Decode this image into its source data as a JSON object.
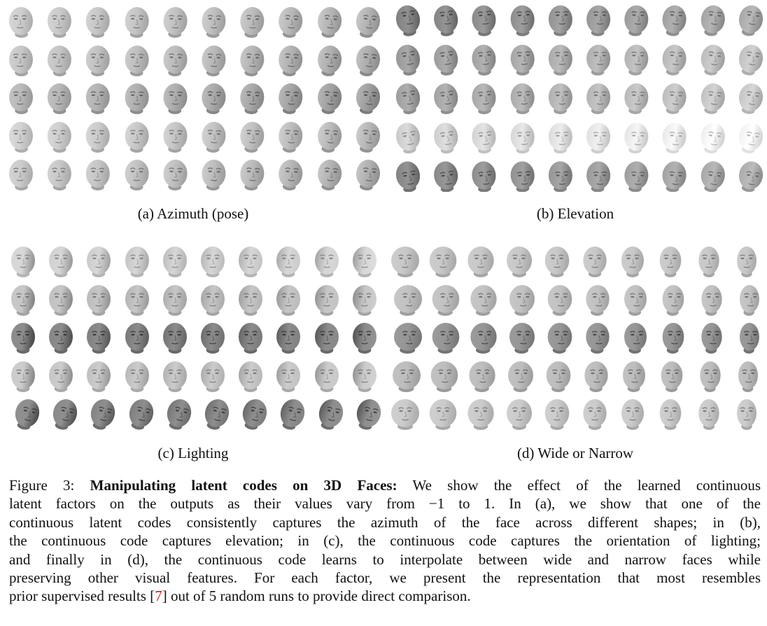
{
  "panels": [
    {
      "id": "a",
      "label": "(a) Azimuth (pose)",
      "factor": "azimuth",
      "rows": 5,
      "cols": 10
    },
    {
      "id": "b",
      "label": "(b) Elevation",
      "factor": "elevation",
      "rows": 5,
      "cols": 10
    },
    {
      "id": "c",
      "label": "(c) Lighting",
      "factor": "lighting",
      "rows": 5,
      "cols": 10
    },
    {
      "id": "d",
      "label": "(d) Wide or Narrow",
      "factor": "width",
      "rows": 5,
      "cols": 10
    }
  ],
  "caption": {
    "figure_label": "Figure 3:",
    "bold_title": "Manipulating latent codes on 3D Faces:",
    "line1_rest": "We show the effect of the learned continuous",
    "line2": "latent factors on the outputs as their values vary from −1 to 1.  In (a), we show that one of the",
    "line3": "continuous latent codes consistently captures the azimuth of the face across different shapes; in (b),",
    "line4": "the continuous code captures elevation; in (c), the continuous code captures the orientation of lighting;",
    "line5": "and finally in (d), the continuous code learns to interpolate between wide and narrow faces while",
    "line6": "preserving other visual features.  For each factor, we present the representation that most resembles",
    "line7_pre": "prior supervised results [",
    "citation": "7",
    "line7_post": "] out of 5 random runs to provide direct comparison."
  },
  "colors": {
    "text": "#111111",
    "citation": "#cc1f1f",
    "background": "#ffffff"
  }
}
